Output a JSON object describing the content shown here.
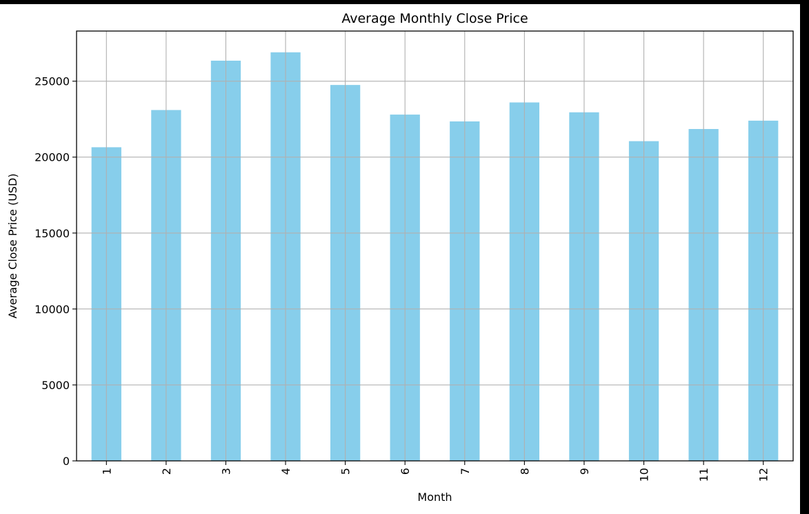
{
  "chart_data": {
    "type": "bar",
    "title": "Average Monthly Close Price",
    "xlabel": "Month",
    "ylabel": "Average Close Price (USD)",
    "categories": [
      "1",
      "2",
      "3",
      "4",
      "5",
      "6",
      "7",
      "8",
      "9",
      "10",
      "11",
      "12"
    ],
    "values": [
      20650,
      23100,
      26350,
      26900,
      24750,
      22800,
      22350,
      23600,
      22950,
      21050,
      21850,
      22400
    ],
    "ylim": [
      0,
      28300
    ],
    "yticks": [
      0,
      5000,
      10000,
      15000,
      20000,
      25000
    ],
    "ytick_labels": [
      "0",
      "5000",
      "10000",
      "15000",
      "20000",
      "25000"
    ],
    "grid": true,
    "colors": {
      "bar": "#87ceeb",
      "grid": "#b0b0b0",
      "axis": "#000000"
    }
  }
}
